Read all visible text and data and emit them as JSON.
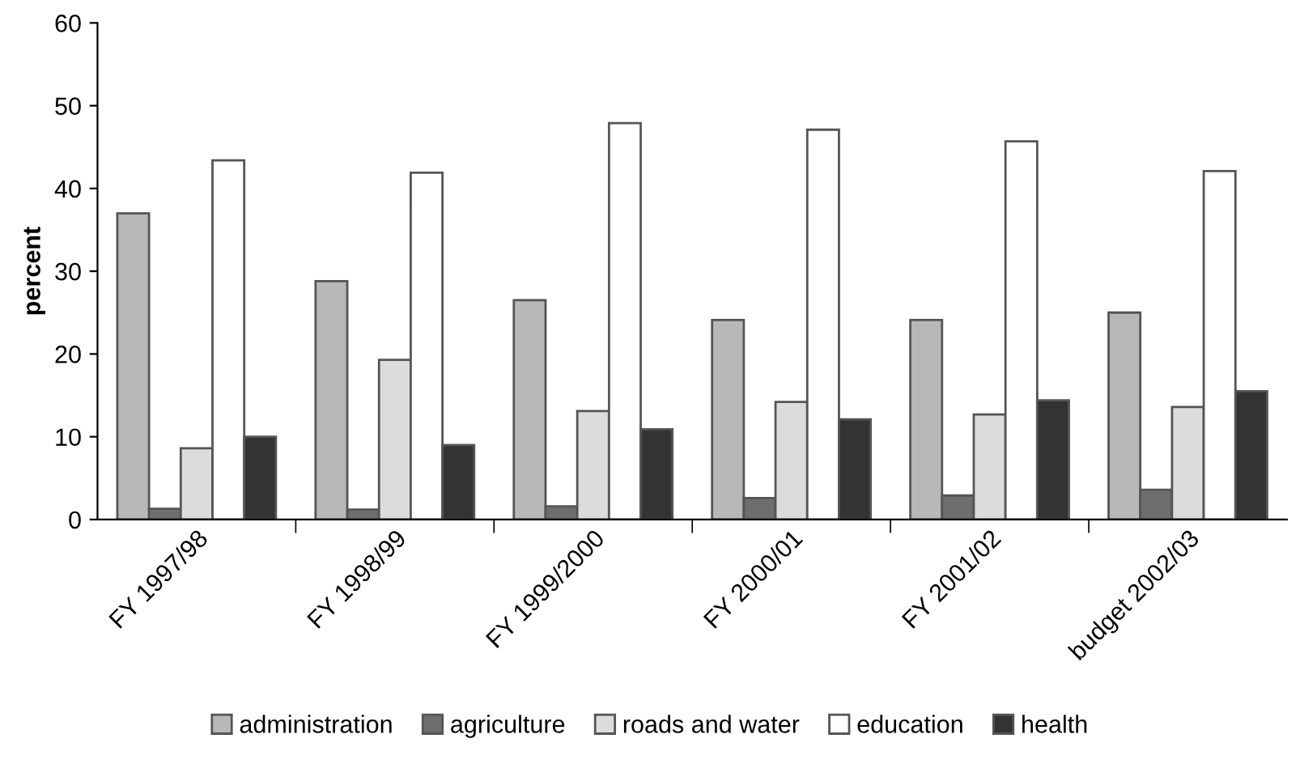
{
  "chart_data": {
    "type": "bar",
    "ylabel": "percent",
    "categories": [
      "FY 1997/98",
      "FY 1998/99",
      "FY 1999/2000",
      "FY 2000/01",
      "FY 2001/02",
      "budget 2002/03"
    ],
    "series": [
      {
        "name": "administration",
        "color": "#b8b8b8",
        "values": [
          37.0,
          28.8,
          26.5,
          24.1,
          24.1,
          25.0
        ]
      },
      {
        "name": "agriculture",
        "color": "#6e6e6e",
        "values": [
          1.3,
          1.2,
          1.6,
          2.6,
          2.9,
          3.6
        ]
      },
      {
        "name": "roads and water",
        "color": "#dcdcdc",
        "values": [
          8.6,
          19.3,
          13.1,
          14.2,
          12.7,
          13.6
        ]
      },
      {
        "name": "education",
        "color": "#ffffff",
        "values": [
          43.4,
          41.9,
          47.9,
          47.1,
          45.7,
          42.1
        ]
      },
      {
        "name": "health",
        "color": "#333333",
        "values": [
          10.0,
          9.0,
          10.9,
          12.1,
          14.4,
          15.5
        ]
      }
    ],
    "ylim": [
      0,
      60
    ],
    "yticks": [
      0,
      10,
      20,
      30,
      40,
      50,
      60
    ],
    "grid": false,
    "legend": "bottom"
  }
}
